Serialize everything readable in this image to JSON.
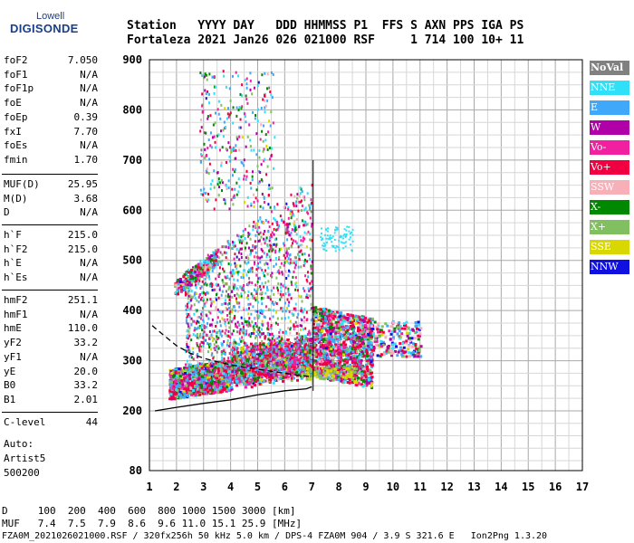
{
  "logo": {
    "line1": "Lowell",
    "line2": "DIGISONDE"
  },
  "header": {
    "row1": "Station   YYYY DAY   DDD HHMMSS P1  FFS S AXN PPS IGA PS",
    "row2": "Fortaleza 2021 Jan26 026 021000 RSF     1 714 100 10+ 11"
  },
  "params": {
    "group1": [
      {
        "k": "foF2",
        "v": "7.050"
      },
      {
        "k": "foF1",
        "v": "N/A"
      },
      {
        "k": "foF1p",
        "v": "N/A"
      },
      {
        "k": "foE",
        "v": "N/A"
      },
      {
        "k": "foEp",
        "v": "0.39"
      },
      {
        "k": "fxI",
        "v": "7.70"
      },
      {
        "k": "foEs",
        "v": "N/A"
      },
      {
        "k": "fmin",
        "v": "1.70"
      }
    ],
    "group2": [
      {
        "k": "MUF(D)",
        "v": "25.95"
      },
      {
        "k": "M(D)",
        "v": "3.68"
      },
      {
        "k": "D",
        "v": "N/A"
      }
    ],
    "group3": [
      {
        "k": "h`F",
        "v": "215.0"
      },
      {
        "k": "h`F2",
        "v": "215.0"
      },
      {
        "k": "h`E",
        "v": "N/A"
      },
      {
        "k": "h`Es",
        "v": "N/A"
      }
    ],
    "group4": [
      {
        "k": "hmF2",
        "v": "251.1"
      },
      {
        "k": "hmF1",
        "v": "N/A"
      },
      {
        "k": "hmE",
        "v": "110.0"
      },
      {
        "k": "yF2",
        "v": "33.2"
      },
      {
        "k": "yF1",
        "v": "N/A"
      },
      {
        "k": "yE",
        "v": "20.0"
      },
      {
        "k": "B0",
        "v": "33.2"
      },
      {
        "k": "B1",
        "v": "2.01"
      }
    ],
    "group5": [
      {
        "k": "C-level",
        "v": "44"
      }
    ]
  },
  "auto": {
    "line1": "Auto:",
    "line2": "Artist5",
    "line3": "500200"
  },
  "legend": [
    {
      "label": "NoVal",
      "color": "#808080"
    },
    {
      "label": "NNE",
      "color": "#30e0f8"
    },
    {
      "label": "E",
      "color": "#40a8f8"
    },
    {
      "label": "W",
      "color": "#b000a8"
    },
    {
      "label": "Vo-",
      "color": "#f020a0"
    },
    {
      "label": "Vo+",
      "color": "#f00040"
    },
    {
      "label": "SSW",
      "color": "#f8b0b8"
    },
    {
      "label": "X-",
      "color": "#008800"
    },
    {
      "label": "X+",
      "color": "#80c060"
    },
    {
      "label": "SSE",
      "color": "#d8d800"
    },
    {
      "label": "NNW",
      "color": "#1010e0"
    }
  ],
  "bottom": {
    "line1": "D     100  200  400  600  800 1000 1500 3000 [km]",
    "line2": "MUF   7.4  7.5  7.9  8.6  9.6 11.0 15.1 25.9 [MHz]",
    "line3": "FZA0M_2021026021000.RSF / 320fx256h 50 kHz 5.0 km / DPS-4 FZA0M 904 / 3.9 S 321.6 E   Ion2Png 1.3.20"
  },
  "chart_data": {
    "type": "scatter",
    "xlim": [
      1,
      17
    ],
    "ylim": [
      80,
      900
    ],
    "xticks": [
      "1",
      "2",
      "3",
      "4",
      "5",
      "6",
      "7",
      "8",
      "9",
      "10",
      "11",
      "12",
      "13",
      "14",
      "15",
      "16",
      "17"
    ],
    "yticks": [
      "80",
      "200",
      "300",
      "400",
      "500",
      "600",
      "700",
      "800",
      "900"
    ],
    "grid": true,
    "traces": [
      {
        "name": "",
        "style": "solid",
        "x": [
          1.2,
          2,
          3,
          4,
          5,
          6,
          6.8,
          7.0
        ],
        "y": [
          200,
          207,
          215,
          222,
          232,
          240,
          244,
          248
        ]
      },
      {
        "name": "",
        "style": "dashed",
        "x": [
          1.1,
          1.5,
          2,
          2.5,
          3,
          3.5,
          4,
          4.5,
          5,
          5.5,
          6,
          6.5,
          7.0
        ],
        "y": [
          370,
          352,
          330,
          315,
          305,
          298,
          292,
          287,
          283,
          279,
          275,
          271,
          268
        ]
      }
    ]
  }
}
